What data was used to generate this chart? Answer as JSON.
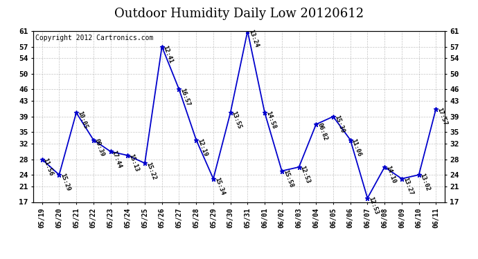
{
  "title": "Outdoor Humidity Daily Low 20120612",
  "copyright_text": "Copyright 2012 Cartronics.com",
  "x_labels": [
    "05/19",
    "05/20",
    "05/21",
    "05/22",
    "05/23",
    "05/24",
    "05/25",
    "05/26",
    "05/27",
    "05/28",
    "05/29",
    "05/30",
    "05/31",
    "06/01",
    "06/02",
    "06/03",
    "06/04",
    "06/05",
    "06/06",
    "06/07",
    "06/08",
    "06/09",
    "06/10",
    "06/11"
  ],
  "y_values": [
    28,
    24,
    40,
    33,
    30,
    29,
    27,
    57,
    46,
    33,
    23,
    40,
    61,
    40,
    25,
    26,
    37,
    39,
    33,
    18,
    26,
    23,
    24,
    41
  ],
  "point_labels": [
    "11:56",
    "15:29",
    "10:05",
    "09:39",
    "17:44",
    "15:13",
    "15:22",
    "12:41",
    "16:57",
    "12:19",
    "15:34",
    "13:55",
    "13:24",
    "14:58",
    "15:58",
    "12:53",
    "06:82",
    "15:30",
    "11:06",
    "12:53",
    "14:10",
    "13:27",
    "13:02",
    "17:57"
  ],
  "ylim": [
    17,
    61
  ],
  "yticks": [
    17,
    21,
    24,
    28,
    32,
    35,
    39,
    43,
    46,
    50,
    54,
    57,
    61
  ],
  "line_color": "#0000CC",
  "marker_color": "#0000CC",
  "background_color": "#FFFFFF",
  "grid_color": "#AAAAAA",
  "title_fontsize": 13,
  "copyright_fontsize": 7,
  "tick_fontsize": 8,
  "label_fontsize": 6.5
}
